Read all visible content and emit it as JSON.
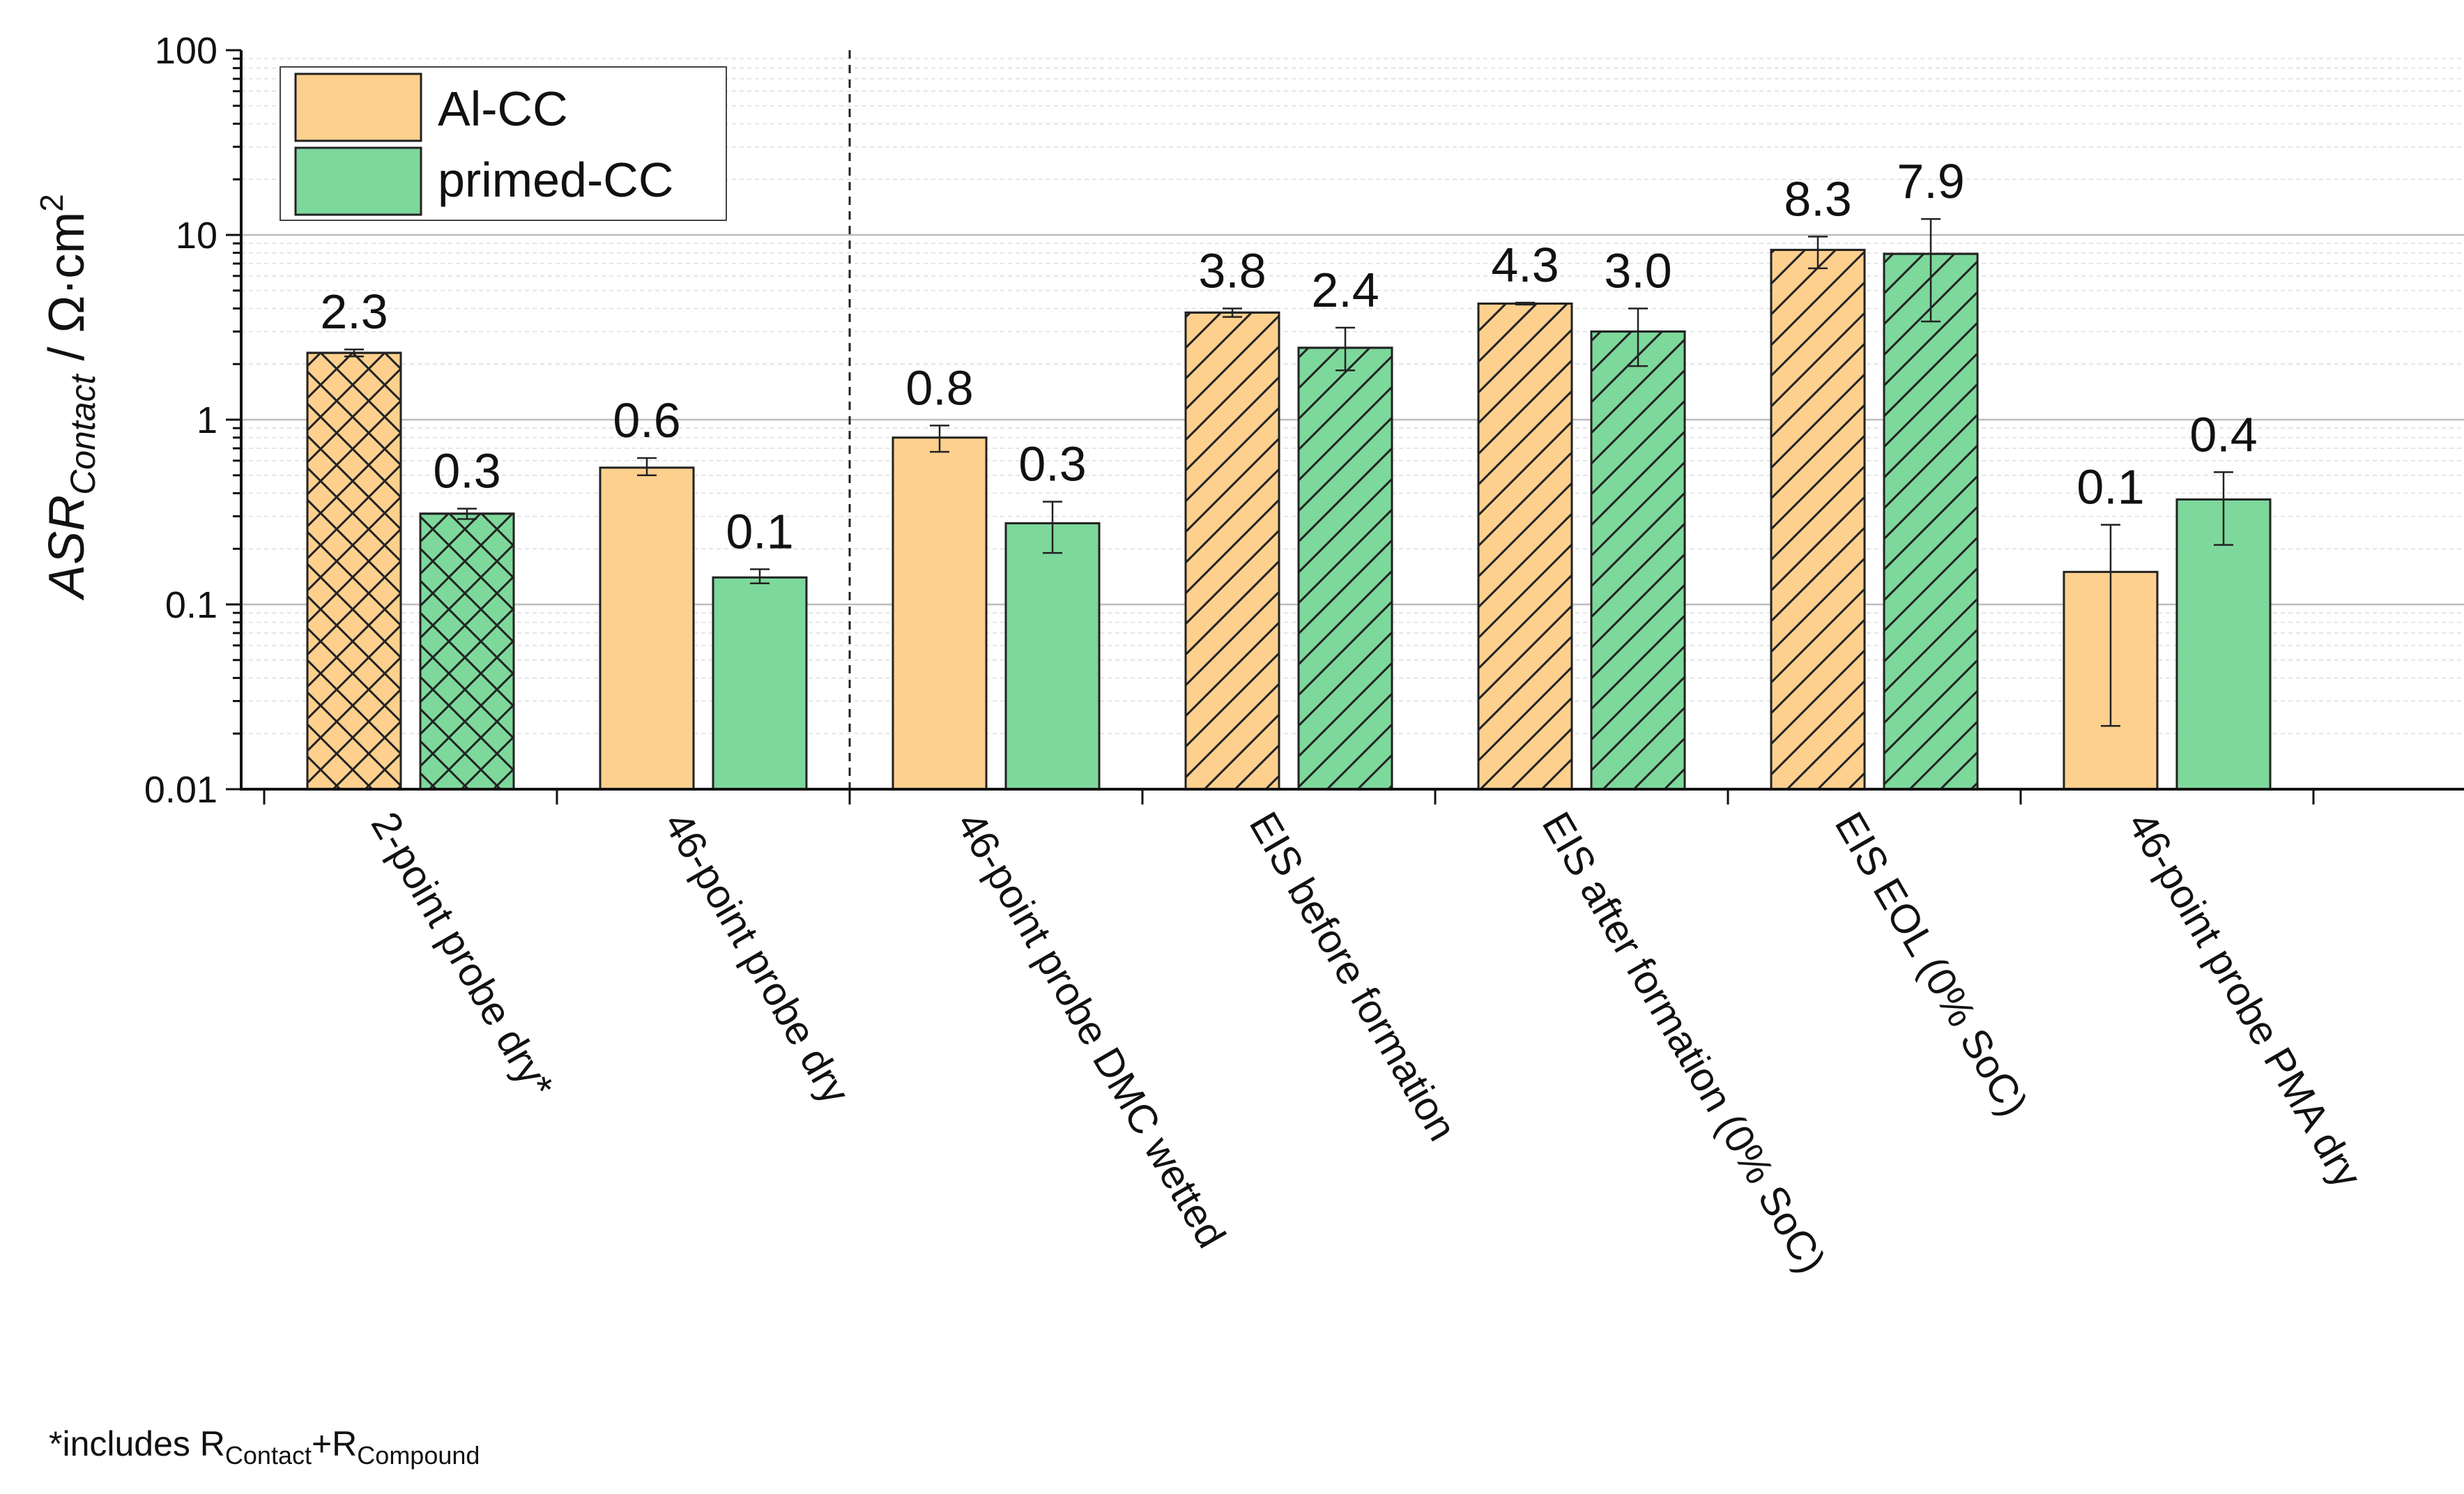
{
  "chart_data": {
    "type": "bar",
    "scale": "log",
    "ylim": [
      0.01,
      100
    ],
    "ylabel": {
      "main": "ASR",
      "subscript": "Contact",
      "unit_prefix": " / Ω·cm",
      "unit_exponent": "2"
    },
    "yticks": [
      {
        "value": 0.01,
        "label": "0.01"
      },
      {
        "value": 0.1,
        "label": "0.1"
      },
      {
        "value": 1,
        "label": "1"
      },
      {
        "value": 10,
        "label": "10"
      },
      {
        "value": 100,
        "label": "100"
      }
    ],
    "categories": [
      "2-point probe dry*",
      "46-point probe dry",
      "46-point probe DMC wetted",
      "EIS before formation",
      "EIS after formation (0% SoC)",
      "EIS EOL (0% SoC)",
      "46-point probe PMA dry"
    ],
    "patterns": [
      "crosshatch",
      "none",
      "none",
      "diagonal",
      "diagonal",
      "diagonal",
      "none"
    ],
    "divider_after_category_index": 1,
    "series": [
      {
        "name": "Al-CC",
        "color": "#FDD08E",
        "values": [
          2.3,
          0.55,
          0.8,
          3.8,
          4.25,
          8.3,
          0.15
        ],
        "err_low": [
          2.2,
          0.5,
          0.67,
          3.6,
          4.2,
          6.6,
          0.022
        ],
        "err_high": [
          2.4,
          0.62,
          0.93,
          4.0,
          4.3,
          9.8,
          0.27
        ],
        "labels": [
          "2.3",
          "0.6",
          "0.8",
          "3.8",
          "4.3",
          "8.3",
          "0.1"
        ]
      },
      {
        "name": "primed-CC",
        "color": "#7DD89B",
        "values": [
          0.31,
          0.14,
          0.275,
          2.45,
          3.0,
          7.9,
          0.37
        ],
        "err_low": [
          0.29,
          0.13,
          0.19,
          1.85,
          1.95,
          3.4,
          0.21
        ],
        "err_high": [
          0.33,
          0.155,
          0.36,
          3.15,
          4.0,
          12.2,
          0.52
        ],
        "labels": [
          "0.3",
          "0.1",
          "0.3",
          "2.4",
          "3.0",
          "7.9",
          "0.4"
        ]
      }
    ],
    "legend_position": "top-left"
  },
  "footnote": {
    "prefix": "*includes R",
    "sub1": "Contact",
    "mid": "+R",
    "sub2": "Compound"
  }
}
